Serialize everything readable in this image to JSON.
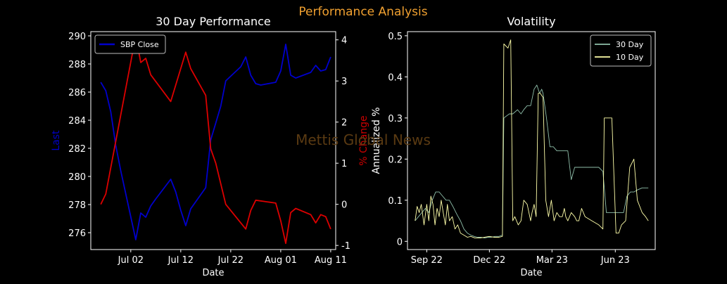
{
  "figure": {
    "title": "Performance Analysis",
    "title_color": "#f0a030",
    "watermark": "Mettis Global News",
    "watermark_color": "#5a3a12",
    "background": "#000000"
  },
  "chart_data": [
    {
      "type": "line",
      "title": "30 Day Performance",
      "xlabel": "Date",
      "ylabel": "Last",
      "ylabel_color": "#0000cc",
      "y2label": "% Change",
      "y2label_color": "#cc0000",
      "xlim": [
        "2023-06-24",
        "2023-08-12"
      ],
      "ylim": [
        274.8,
        290.3
      ],
      "y2lim": [
        -1.1,
        4.2
      ],
      "xticks": [
        {
          "date": "2023-07-02",
          "label": "Jul 02"
        },
        {
          "date": "2023-07-12",
          "label": "Jul 12"
        },
        {
          "date": "2023-07-22",
          "label": "Jul 22"
        },
        {
          "date": "2023-08-01",
          "label": "Aug 01"
        },
        {
          "date": "2023-08-11",
          "label": "Aug 11"
        }
      ],
      "yticks": [
        276,
        278,
        280,
        282,
        284,
        286,
        288,
        290
      ],
      "y2ticks": [
        -1,
        0,
        1,
        2,
        3,
        4
      ],
      "legend": {
        "position": "top-left",
        "entries": [
          "SBP Close"
        ]
      },
      "grid": false,
      "series": [
        {
          "name": "SBP Close",
          "axis": "left",
          "color": "#0000cc",
          "x": [
            "2023-06-26",
            "2023-06-27",
            "2023-06-28",
            "2023-06-29",
            "2023-06-30",
            "2023-07-03",
            "2023-07-04",
            "2023-07-05",
            "2023-07-06",
            "2023-07-07",
            "2023-07-10",
            "2023-07-11",
            "2023-07-12",
            "2023-07-13",
            "2023-07-14",
            "2023-07-17",
            "2023-07-18",
            "2023-07-19",
            "2023-07-20",
            "2023-07-21",
            "2023-07-24",
            "2023-07-25",
            "2023-07-26",
            "2023-07-27",
            "2023-07-28",
            "2023-07-31",
            "2023-08-01",
            "2023-08-02",
            "2023-08-03",
            "2023-08-04",
            "2023-08-07",
            "2023-08-08",
            "2023-08-09",
            "2023-08-10",
            "2023-08-11"
          ],
          "values": [
            286.7,
            286.1,
            284.6,
            282.2,
            280.4,
            275.5,
            277.4,
            277.1,
            277.9,
            278.4,
            279.8,
            278.9,
            277.6,
            276.5,
            277.7,
            279.2,
            282.6,
            283.8,
            285.0,
            286.8,
            287.8,
            288.5,
            287.2,
            286.6,
            286.5,
            286.7,
            287.5,
            289.4,
            287.2,
            287.0,
            287.4,
            287.9,
            287.5,
            287.6,
            288.5
          ]
        },
        {
          "name": "% Change",
          "axis": "right",
          "color": "#dd0000",
          "x": [
            "2023-06-26",
            "2023-06-27",
            "2023-07-03",
            "2023-07-04",
            "2023-07-05",
            "2023-07-06",
            "2023-07-10",
            "2023-07-13",
            "2023-07-14",
            "2023-07-17",
            "2023-07-18",
            "2023-07-19",
            "2023-07-21",
            "2023-07-25",
            "2023-07-26",
            "2023-07-27",
            "2023-07-31",
            "2023-08-01",
            "2023-08-02",
            "2023-08-03",
            "2023-08-04",
            "2023-08-07",
            "2023-08-08",
            "2023-08-09",
            "2023-08-10",
            "2023-08-11"
          ],
          "values": [
            0.0,
            0.25,
            4.1,
            3.45,
            3.55,
            3.15,
            2.5,
            3.7,
            3.3,
            2.65,
            1.35,
            1.0,
            0.0,
            -0.6,
            -0.15,
            0.1,
            0.03,
            -0.4,
            -0.95,
            -0.2,
            -0.1,
            -0.25,
            -0.45,
            -0.25,
            -0.3,
            -0.6
          ]
        }
      ]
    },
    {
      "type": "line",
      "title": "Volatility",
      "xlabel": "Date",
      "ylabel": "Annualized %",
      "xlim": [
        "2022-08-25",
        "2023-08-20"
      ],
      "ylim": [
        -0.02,
        0.51
      ],
      "xticks": [
        {
          "date": "2022-09-22",
          "label": "Sep 22"
        },
        {
          "date": "2022-12-22",
          "label": "Dec 22"
        },
        {
          "date": "2023-03-23",
          "label": "Mar 23"
        },
        {
          "date": "2023-06-23",
          "label": "Jun 23"
        }
      ],
      "yticks": [
        0.0,
        0.1,
        0.2,
        0.3,
        0.4,
        0.5
      ],
      "legend": {
        "position": "top-right",
        "entries": [
          "30 Day",
          "10 Day"
        ]
      },
      "grid": false,
      "series": [
        {
          "name": "30 Day",
          "color": "#8fbfaa",
          "x": [
            "2022-09-05",
            "2022-09-10",
            "2022-09-15",
            "2022-09-20",
            "2022-09-25",
            "2022-09-30",
            "2022-10-05",
            "2022-10-10",
            "2022-10-15",
            "2022-10-20",
            "2022-10-25",
            "2022-10-30",
            "2022-11-05",
            "2022-11-10",
            "2022-11-15",
            "2022-11-20",
            "2022-11-25",
            "2022-11-30",
            "2022-12-05",
            "2022-12-10",
            "2022-12-15",
            "2022-12-20",
            "2022-12-25",
            "2022-12-30",
            "2023-01-05",
            "2023-01-10",
            "2023-01-12",
            "2023-01-20",
            "2023-01-25",
            "2023-02-01",
            "2023-02-06",
            "2023-02-10",
            "2023-02-15",
            "2023-02-20",
            "2023-02-25",
            "2023-03-01",
            "2023-03-05",
            "2023-03-08",
            "2023-03-10",
            "2023-03-15",
            "2023-03-20",
            "2023-03-25",
            "2023-03-30",
            "2023-04-03",
            "2023-04-10",
            "2023-04-15",
            "2023-04-20",
            "2023-04-25",
            "2023-04-30",
            "2023-05-05",
            "2023-05-10",
            "2023-05-20",
            "2023-05-30",
            "2023-06-05",
            "2023-06-10",
            "2023-06-15",
            "2023-06-20",
            "2023-06-25",
            "2023-07-01",
            "2023-07-05",
            "2023-07-10",
            "2023-07-15",
            "2023-07-20",
            "2023-07-25",
            "2023-08-01",
            "2023-08-10"
          ],
          "values": [
            0.05,
            0.06,
            0.07,
            0.08,
            0.07,
            0.1,
            0.12,
            0.12,
            0.11,
            0.1,
            0.1,
            0.085,
            0.065,
            0.05,
            0.03,
            0.02,
            0.015,
            0.012,
            0.01,
            0.01,
            0.008,
            0.01,
            0.01,
            0.012,
            0.012,
            0.015,
            0.3,
            0.31,
            0.31,
            0.32,
            0.31,
            0.32,
            0.33,
            0.33,
            0.37,
            0.38,
            0.36,
            0.37,
            0.36,
            0.3,
            0.23,
            0.23,
            0.22,
            0.22,
            0.22,
            0.22,
            0.15,
            0.18,
            0.18,
            0.18,
            0.18,
            0.18,
            0.18,
            0.17,
            0.07,
            0.07,
            0.07,
            0.07,
            0.07,
            0.07,
            0.11,
            0.12,
            0.12,
            0.125,
            0.13,
            0.13
          ]
        },
        {
          "name": "10 Day",
          "color": "#ffffaa",
          "x": [
            "2022-09-05",
            "2022-09-08",
            "2022-09-11",
            "2022-09-14",
            "2022-09-18",
            "2022-09-22",
            "2022-09-25",
            "2022-09-28",
            "2022-10-01",
            "2022-10-04",
            "2022-10-07",
            "2022-10-10",
            "2022-10-13",
            "2022-10-16",
            "2022-10-19",
            "2022-10-22",
            "2022-10-25",
            "2022-10-29",
            "2022-11-02",
            "2022-11-06",
            "2022-11-10",
            "2022-11-15",
            "2022-11-20",
            "2022-11-25",
            "2022-12-01",
            "2022-12-08",
            "2022-12-15",
            "2022-12-22",
            "2022-12-29",
            "2023-01-05",
            "2023-01-10",
            "2023-01-12",
            "2023-01-18",
            "2023-01-22",
            "2023-01-25",
            "2023-01-28",
            "2023-02-02",
            "2023-02-06",
            "2023-02-10",
            "2023-02-15",
            "2023-02-20",
            "2023-02-22",
            "2023-02-25",
            "2023-02-28",
            "2023-03-03",
            "2023-03-06",
            "2023-03-10",
            "2023-03-14",
            "2023-03-18",
            "2023-03-22",
            "2023-03-26",
            "2023-03-30",
            "2023-04-03",
            "2023-04-07",
            "2023-04-10",
            "2023-04-12",
            "2023-04-15",
            "2023-04-20",
            "2023-04-25",
            "2023-04-28",
            "2023-05-01",
            "2023-05-05",
            "2023-05-10",
            "2023-05-20",
            "2023-05-30",
            "2023-06-05",
            "2023-06-07",
            "2023-06-12",
            "2023-06-18",
            "2023-06-24",
            "2023-06-28",
            "2023-07-02",
            "2023-07-08",
            "2023-07-14",
            "2023-07-20",
            "2023-07-25",
            "2023-08-01",
            "2023-08-06",
            "2023-08-10"
          ],
          "values": [
            0.05,
            0.085,
            0.07,
            0.09,
            0.04,
            0.09,
            0.05,
            0.11,
            0.09,
            0.04,
            0.08,
            0.06,
            0.1,
            0.07,
            0.04,
            0.09,
            0.05,
            0.06,
            0.03,
            0.04,
            0.02,
            0.015,
            0.01,
            0.012,
            0.008,
            0.008,
            0.01,
            0.012,
            0.01,
            0.01,
            0.012,
            0.48,
            0.47,
            0.49,
            0.05,
            0.06,
            0.04,
            0.05,
            0.1,
            0.09,
            0.05,
            0.07,
            0.09,
            0.06,
            0.36,
            0.36,
            0.35,
            0.1,
            0.06,
            0.1,
            0.05,
            0.07,
            0.06,
            0.06,
            0.08,
            0.06,
            0.05,
            0.07,
            0.06,
            0.05,
            0.05,
            0.08,
            0.06,
            0.05,
            0.04,
            0.03,
            0.3,
            0.3,
            0.3,
            0.02,
            0.02,
            0.04,
            0.05,
            0.18,
            0.2,
            0.1,
            0.07,
            0.06,
            0.05
          ]
        }
      ]
    }
  ]
}
